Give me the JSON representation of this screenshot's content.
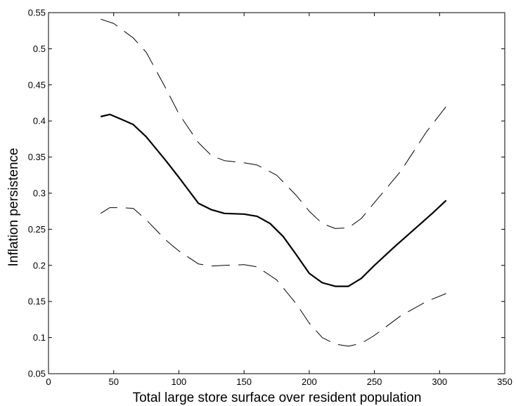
{
  "chart_data": {
    "type": "line",
    "title": "",
    "xlabel": "Total large store surface over resident population",
    "ylabel": "Inflation persistence",
    "xlim": [
      0,
      350
    ],
    "ylim": [
      0.05,
      0.55
    ],
    "x_ticks": [
      "0",
      "50",
      "100",
      "150",
      "200",
      "250",
      "300",
      "350"
    ],
    "y_ticks": [
      "0.05",
      "0.1",
      "0.15",
      "0.2",
      "0.25",
      "0.3",
      "0.35",
      "0.4",
      "0.45",
      "0.5",
      "0.55"
    ],
    "grid": false,
    "legend": "none",
    "series": [
      {
        "style": "dashed",
        "x": [
          40,
          50,
          65,
          75,
          90,
          100,
          115,
          125,
          135,
          150,
          160,
          175,
          190,
          200,
          210,
          220,
          230,
          240,
          250,
          270,
          290,
          305
        ],
        "values": [
          0.541,
          0.535,
          0.515,
          0.495,
          0.445,
          0.41,
          0.37,
          0.352,
          0.345,
          0.342,
          0.339,
          0.325,
          0.297,
          0.275,
          0.258,
          0.251,
          0.252,
          0.265,
          0.287,
          0.33,
          0.385,
          0.42
        ]
      },
      {
        "style": "solid",
        "x": [
          40,
          47,
          55,
          65,
          75,
          90,
          100,
          115,
          125,
          135,
          150,
          160,
          170,
          180,
          190,
          200,
          210,
          220,
          230,
          240,
          250,
          265,
          280,
          295,
          305
        ],
        "values": [
          0.406,
          0.409,
          0.403,
          0.395,
          0.378,
          0.345,
          0.322,
          0.286,
          0.277,
          0.272,
          0.271,
          0.268,
          0.258,
          0.24,
          0.215,
          0.189,
          0.176,
          0.171,
          0.171,
          0.182,
          0.2,
          0.225,
          0.249,
          0.273,
          0.29
        ]
      },
      {
        "style": "dashed",
        "x": [
          40,
          47,
          55,
          65,
          75,
          90,
          100,
          115,
          125,
          135,
          150,
          160,
          175,
          190,
          200,
          210,
          220,
          230,
          240,
          250,
          270,
          290,
          305
        ],
        "values": [
          0.272,
          0.28,
          0.28,
          0.279,
          0.263,
          0.235,
          0.22,
          0.202,
          0.199,
          0.2,
          0.201,
          0.198,
          0.18,
          0.147,
          0.12,
          0.1,
          0.091,
          0.088,
          0.092,
          0.103,
          0.13,
          0.15,
          0.161
        ]
      }
    ]
  }
}
